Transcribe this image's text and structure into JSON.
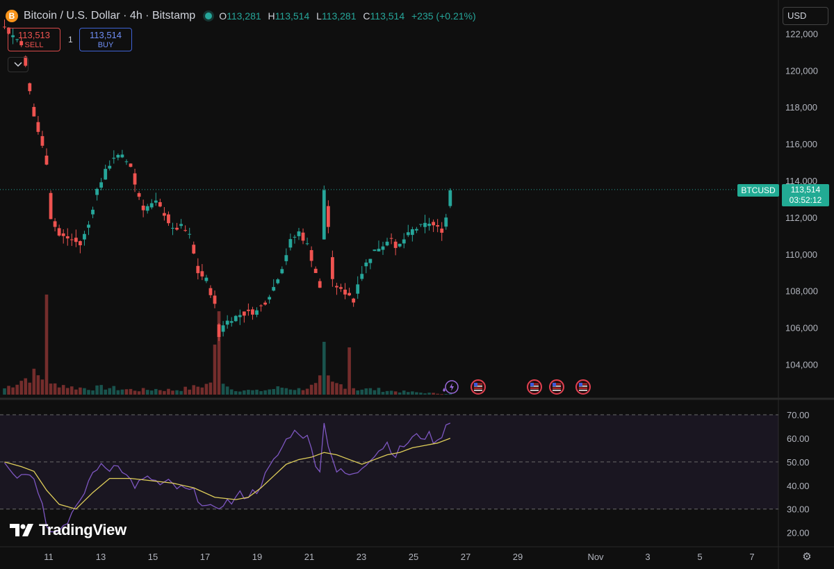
{
  "header": {
    "symbol_icon": "B",
    "title": "Bitcoin / U.S. Dollar · 4h · Bitstamp",
    "o_label": "O",
    "o_value": "113,281",
    "h_label": "H",
    "h_value": "113,514",
    "l_label": "L",
    "l_value": "113,281",
    "c_label": "C",
    "c_value": "113,514",
    "change": "+235 (+0.21%)"
  },
  "trade": {
    "sell_price": "113,513",
    "sell_label": "SELL",
    "spread": "1",
    "buy_price": "113,514",
    "buy_label": "BUY"
  },
  "currency": "USD",
  "last_price": {
    "symbol": "BTCUSD",
    "price": "113,514",
    "countdown": "03:52:12",
    "value": 113514
  },
  "logo_text": "TradingView",
  "colors": {
    "up": "#26a69a",
    "down": "#ef5350",
    "rsi": "#7e57c2",
    "rsi_ma": "#e0cf5a",
    "background": "#0f0f0f"
  },
  "chart_data": [
    {
      "type": "candlestick",
      "interval": "4h",
      "x_labels": [
        "11",
        "13",
        "15",
        "17",
        "19",
        "21",
        "23",
        "25",
        "27",
        "29",
        "Nov",
        "3",
        "5",
        "7"
      ],
      "y_ticks": [
        "104,000",
        "106,000",
        "108,000",
        "110,000",
        "112,000",
        "114,000",
        "116,000",
        "118,000",
        "120,000",
        "122,000"
      ],
      "ylim": [
        102200,
        123000
      ],
      "close_path": [
        [
          0,
          122300
        ],
        [
          4,
          121500
        ],
        [
          7,
          117500
        ],
        [
          10,
          115000
        ],
        [
          11,
          112000
        ],
        [
          13,
          111000
        ],
        [
          16,
          110800
        ],
        [
          18,
          110500
        ],
        [
          20,
          111600
        ],
        [
          22,
          113500
        ],
        [
          24,
          114500
        ],
        [
          26,
          115300
        ],
        [
          28,
          115300
        ],
        [
          30,
          114800
        ],
        [
          31,
          113800
        ],
        [
          33,
          112500
        ],
        [
          36,
          112800
        ],
        [
          38,
          112200
        ],
        [
          40,
          111300
        ],
        [
          42,
          111500
        ],
        [
          44,
          111000
        ],
        [
          46,
          109000
        ],
        [
          48,
          108600
        ],
        [
          50,
          107200
        ],
        [
          51,
          105500
        ],
        [
          52,
          106200
        ],
        [
          54,
          106500
        ],
        [
          56,
          106700
        ],
        [
          58,
          106800
        ],
        [
          60,
          106900
        ],
        [
          62,
          107400
        ],
        [
          64,
          108200
        ],
        [
          66,
          109300
        ],
        [
          68,
          110700
        ],
        [
          70,
          111200
        ],
        [
          72,
          110500
        ],
        [
          74,
          109000
        ],
        [
          75,
          108100
        ],
        [
          76,
          113500
        ],
        [
          77,
          111500
        ],
        [
          78,
          108500
        ],
        [
          80,
          108000
        ],
        [
          82,
          107800
        ],
        [
          83,
          107400
        ],
        [
          84,
          108500
        ],
        [
          86,
          109500
        ],
        [
          88,
          110200
        ],
        [
          90,
          110500
        ],
        [
          92,
          111000
        ],
        [
          93,
          110200
        ],
        [
          95,
          110800
        ],
        [
          97,
          111300
        ],
        [
          99,
          111500
        ],
        [
          101,
          111700
        ],
        [
          103,
          111400
        ],
        [
          104,
          111300
        ],
        [
          105,
          112000
        ],
        [
          106,
          113514
        ]
      ],
      "volume_path": [
        [
          0,
          0.35
        ],
        [
          4,
          0.8
        ],
        [
          7,
          1.1
        ],
        [
          9,
          0.9
        ],
        [
          11,
          0.5
        ],
        [
          13,
          0.6
        ],
        [
          16,
          0.4
        ],
        [
          20,
          0.35
        ],
        [
          24,
          0.4
        ],
        [
          28,
          0.3
        ],
        [
          32,
          0.25
        ],
        [
          36,
          0.3
        ],
        [
          40,
          0.25
        ],
        [
          44,
          0.35
        ],
        [
          48,
          0.55
        ],
        [
          50,
          0.9
        ],
        [
          51,
          1.0
        ],
        [
          52,
          0.85
        ],
        [
          54,
          0.3
        ],
        [
          60,
          0.2
        ],
        [
          62,
          0.25
        ],
        [
          66,
          0.4
        ],
        [
          70,
          0.3
        ],
        [
          74,
          0.5
        ],
        [
          76,
          1.05
        ],
        [
          78,
          0.6
        ],
        [
          80,
          0.55
        ],
        [
          82,
          0.5
        ],
        [
          84,
          0.3
        ],
        [
          88,
          0.3
        ],
        [
          92,
          0.2
        ],
        [
          96,
          0.15
        ],
        [
          100,
          0.1
        ],
        [
          104,
          0.05
        ],
        [
          106,
          0.05
        ]
      ],
      "volume_spikes": [
        [
          10,
          1.8
        ],
        [
          50,
          0.9
        ],
        [
          51,
          1.5
        ],
        [
          76,
          0.95
        ],
        [
          82,
          0.85
        ]
      ],
      "event_markers": [
        "lightning",
        "us-flag",
        "us-flag",
        "us-flag",
        "us-flag"
      ]
    },
    {
      "type": "line",
      "indicator": "RSI",
      "y_ticks": [
        "20.00",
        "30.00",
        "40.00",
        "50.00",
        "60.00",
        "70.00"
      ],
      "ylim": [
        14,
        75
      ],
      "levels": [
        70,
        50,
        30
      ],
      "band": [
        30,
        70
      ],
      "rsi_path": [
        [
          0,
          51
        ],
        [
          3,
          44
        ],
        [
          6,
          46
        ],
        [
          9,
          34
        ],
        [
          10,
          24
        ],
        [
          12,
          20
        ],
        [
          14,
          23
        ],
        [
          16,
          28
        ],
        [
          18,
          32
        ],
        [
          20,
          42
        ],
        [
          22,
          48
        ],
        [
          25,
          47
        ],
        [
          27,
          50
        ],
        [
          29,
          44
        ],
        [
          31,
          40
        ],
        [
          33,
          42
        ],
        [
          35,
          43
        ],
        [
          37,
          40
        ],
        [
          39,
          41
        ],
        [
          41,
          39
        ],
        [
          43,
          38
        ],
        [
          45,
          37
        ],
        [
          47,
          33
        ],
        [
          48,
          31
        ],
        [
          50,
          29
        ],
        [
          52,
          33
        ],
        [
          54,
          33
        ],
        [
          56,
          36
        ],
        [
          58,
          36
        ],
        [
          60,
          38
        ],
        [
          62,
          44
        ],
        [
          64,
          50
        ],
        [
          66,
          56
        ],
        [
          68,
          62
        ],
        [
          70,
          63
        ],
        [
          72,
          60
        ],
        [
          74,
          50
        ],
        [
          75,
          47
        ],
        [
          76,
          66
        ],
        [
          77,
          58
        ],
        [
          79,
          46
        ],
        [
          81,
          45
        ],
        [
          83,
          44
        ],
        [
          85,
          48
        ],
        [
          87,
          52
        ],
        [
          89,
          55
        ],
        [
          91,
          58
        ],
        [
          93,
          53
        ],
        [
          95,
          57
        ],
        [
          97,
          60
        ],
        [
          99,
          61
        ],
        [
          101,
          61
        ],
        [
          103,
          58
        ],
        [
          105,
          66
        ],
        [
          106,
          68
        ]
      ],
      "ma_path": [
        [
          0,
          50
        ],
        [
          4,
          48
        ],
        [
          7,
          46
        ],
        [
          10,
          38
        ],
        [
          13,
          32
        ],
        [
          17,
          30
        ],
        [
          21,
          37
        ],
        [
          25,
          43
        ],
        [
          30,
          43
        ],
        [
          35,
          42
        ],
        [
          40,
          41
        ],
        [
          45,
          39
        ],
        [
          50,
          35
        ],
        [
          55,
          34
        ],
        [
          58,
          35
        ],
        [
          61,
          39
        ],
        [
          64,
          44
        ],
        [
          67,
          49
        ],
        [
          70,
          51
        ],
        [
          73,
          52
        ],
        [
          76,
          54
        ],
        [
          79,
          53
        ],
        [
          82,
          51
        ],
        [
          85,
          49
        ],
        [
          88,
          51
        ],
        [
          91,
          53
        ],
        [
          94,
          54
        ],
        [
          97,
          56
        ],
        [
          100,
          57
        ],
        [
          103,
          58
        ],
        [
          106,
          60
        ]
      ]
    }
  ]
}
